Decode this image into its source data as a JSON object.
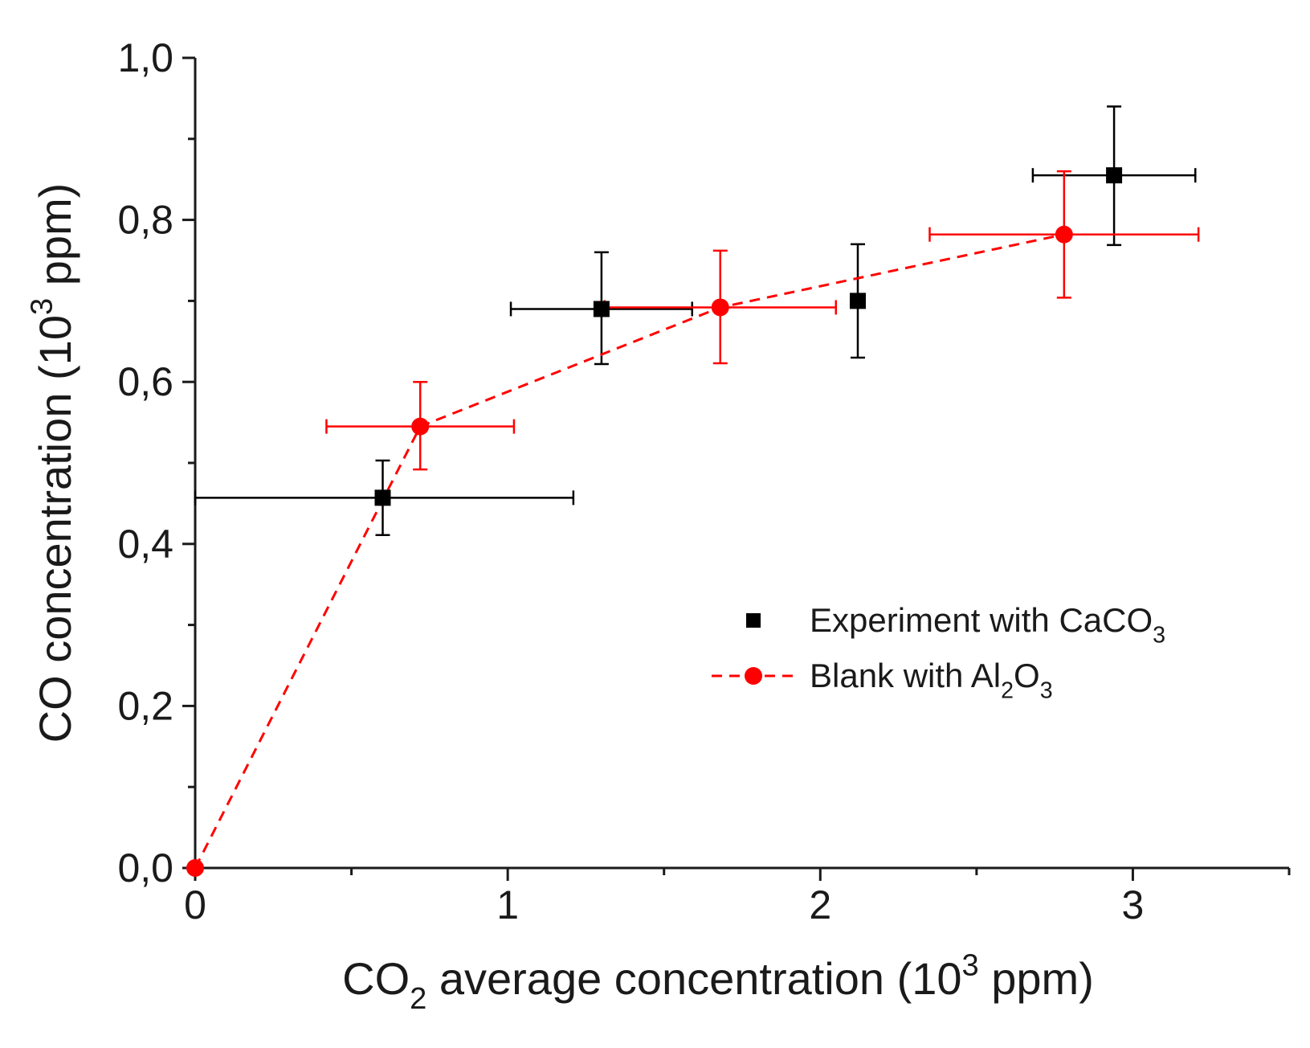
{
  "chart_data": {
    "type": "scatter",
    "title": "",
    "xlabel": {
      "parts": [
        {
          "t": "CO",
          "s": ""
        },
        {
          "t": "2",
          "s": "sub"
        },
        {
          "t": " average concentration (10",
          "s": ""
        },
        {
          "t": "3",
          "s": "sup"
        },
        {
          "t": " ppm)",
          "s": ""
        }
      ]
    },
    "ylabel": {
      "parts": [
        {
          "t": "CO concentration (10",
          "s": ""
        },
        {
          "t": "3",
          "s": "sup"
        },
        {
          "t": " ppm)",
          "s": ""
        }
      ]
    },
    "xlim": [
      0,
      3.5
    ],
    "ylim": [
      0,
      1.0
    ],
    "x_major_ticks": [
      0,
      1,
      2,
      3
    ],
    "x_minor_ticks": [
      0.5,
      1.5,
      2.5,
      3.5
    ],
    "y_major_ticks": [
      0.0,
      0.2,
      0.4,
      0.6,
      0.8,
      1.0
    ],
    "y_minor_ticks": [
      0.1,
      0.3,
      0.5,
      0.7,
      0.9
    ],
    "x_tick_labels": [
      "0",
      "1",
      "2",
      "3"
    ],
    "y_tick_labels": [
      "0,0",
      "0,2",
      "0,4",
      "0,6",
      "0,8",
      "1,0"
    ],
    "grid": false,
    "legend_position": "center-right",
    "series": [
      {
        "name": {
          "parts": [
            {
              "t": "Experiment with CaCO",
              "s": ""
            },
            {
              "t": "3",
              "s": "sub"
            }
          ]
        },
        "marker": "square",
        "color": "#000000",
        "line": "none",
        "points": [
          {
            "x": 0.6,
            "y": 0.457,
            "xerr": [
              0.0,
              1.21
            ],
            "yerr": [
              0.411,
              0.503
            ]
          },
          {
            "x": 1.3,
            "y": 0.69,
            "xerr": [
              1.01,
              1.59
            ],
            "yerr": [
              0.622,
              0.76
            ]
          },
          {
            "x": 2.12,
            "y": 0.7,
            "xerr": null,
            "yerr": [
              0.63,
              0.77
            ]
          },
          {
            "x": 2.94,
            "y": 0.855,
            "xerr": [
              2.68,
              3.2
            ],
            "yerr": [
              0.769,
              0.94
            ]
          }
        ]
      },
      {
        "name": {
          "parts": [
            {
              "t": "Blank with Al",
              "s": ""
            },
            {
              "t": "2",
              "s": "sub"
            },
            {
              "t": "O",
              "s": ""
            },
            {
              "t": "3",
              "s": "sub"
            }
          ]
        },
        "marker": "circle",
        "color": "#ff0000",
        "line": "dashed",
        "points": [
          {
            "x": 0.0,
            "y": 0.0,
            "xerr": null,
            "yerr": null
          },
          {
            "x": 0.72,
            "y": 0.545,
            "xerr": [
              0.42,
              1.02
            ],
            "yerr": [
              0.492,
              0.6
            ]
          },
          {
            "x": 1.68,
            "y": 0.692,
            "xerr": [
              1.31,
              2.05
            ],
            "yerr": [
              0.623,
              0.762
            ]
          },
          {
            "x": 2.78,
            "y": 0.782,
            "xerr": [
              2.35,
              3.21
            ],
            "yerr": [
              0.704,
              0.86
            ]
          }
        ]
      }
    ]
  }
}
